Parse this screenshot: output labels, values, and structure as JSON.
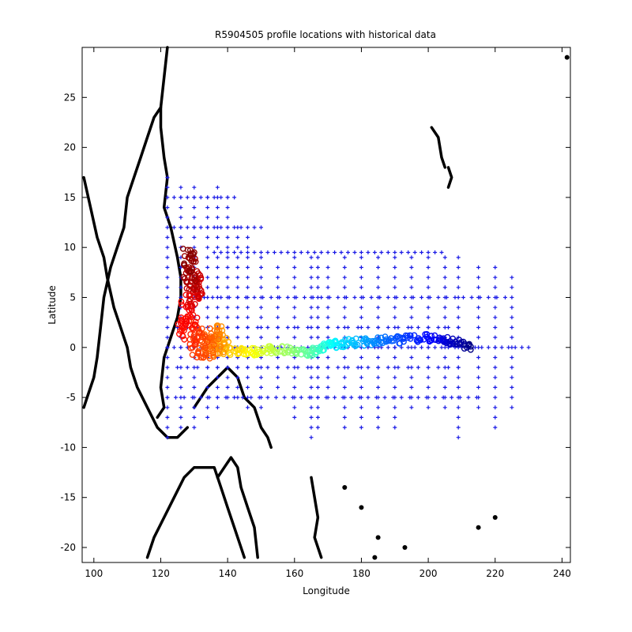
{
  "chart_data": {
    "type": "scatter",
    "title": "R5904505 profile locations with historical data",
    "xlabel": "Longitude",
    "ylabel": "Latitude",
    "xlim": [
      96.5,
      242.5
    ],
    "ylim": [
      -21.5,
      30
    ],
    "xticks": [
      100,
      120,
      140,
      160,
      180,
      200,
      220,
      240
    ],
    "yticks": [
      -20,
      -15,
      -10,
      -5,
      0,
      5,
      10,
      15,
      20,
      25
    ],
    "grid": false,
    "colors": {
      "historical": "#1a1ae6",
      "coastline": "#000000",
      "axes": "#000000"
    },
    "series": [
      {
        "role": "historical profiles",
        "marker": "plus",
        "color": "#1a1ae6",
        "tracks": [
          {
            "x": 122,
            "y0": -9,
            "y1": 17,
            "step": 1
          },
          {
            "x": 126,
            "y0": -8,
            "y1": 16,
            "step": 1
          },
          {
            "x": 130,
            "y0": -8,
            "y1": 16,
            "step": 1
          },
          {
            "x": 134,
            "y0": -7,
            "y1": 15,
            "step": 1
          },
          {
            "x": 137,
            "y0": -6,
            "y1": 16,
            "step": 1
          },
          {
            "x": 140,
            "y0": -5,
            "y1": 15,
            "step": 1
          },
          {
            "x": 143,
            "y0": -5,
            "y1": 12,
            "step": 1
          },
          {
            "x": 146,
            "y0": -6,
            "y1": 11,
            "step": 1
          },
          {
            "x": 150,
            "y0": -6,
            "y1": 9,
            "step": 1
          },
          {
            "x": 155,
            "y0": -4,
            "y1": 8,
            "step": 1
          },
          {
            "x": 160,
            "y0": -7,
            "y1": 9,
            "step": 1
          },
          {
            "x": 165,
            "y0": -9,
            "y1": 9,
            "step": 1
          },
          {
            "x": 167,
            "y0": -8,
            "y1": 9,
            "step": 1
          },
          {
            "x": 170,
            "y0": -5,
            "y1": 8,
            "step": 1
          },
          {
            "x": 175,
            "y0": -8,
            "y1": 9,
            "step": 1
          },
          {
            "x": 180,
            "y0": -8,
            "y1": 9,
            "step": 1
          },
          {
            "x": 185,
            "y0": -8,
            "y1": 9,
            "step": 1
          },
          {
            "x": 190,
            "y0": -8,
            "y1": 9,
            "step": 1
          },
          {
            "x": 195,
            "y0": -6,
            "y1": 9,
            "step": 1
          },
          {
            "x": 200,
            "y0": -6,
            "y1": 9,
            "step": 1
          },
          {
            "x": 205,
            "y0": -6,
            "y1": 9,
            "step": 1
          },
          {
            "x": 209,
            "y0": -9,
            "y1": 9,
            "step": 1
          },
          {
            "x": 215,
            "y0": -6,
            "y1": 8,
            "step": 1
          },
          {
            "x": 220,
            "y0": -8,
            "y1": 8,
            "step": 1
          },
          {
            "x": 225,
            "y0": -6,
            "y1": 7,
            "step": 1
          },
          {
            "y": 0,
            "x0": 122,
            "x1": 230,
            "step": 2
          },
          {
            "y": 9.5,
            "x0": 136,
            "x1": 205,
            "step": 2
          },
          {
            "y": 5,
            "x0": 128,
            "x1": 225,
            "step": 2.5
          },
          {
            "y": -5,
            "x0": 122,
            "x1": 215,
            "step": 2.5
          },
          {
            "y": 2,
            "x0": 125,
            "x1": 210,
            "step": 3
          },
          {
            "y": -2,
            "x0": 125,
            "x1": 210,
            "step": 3
          },
          {
            "y": 15,
            "x0": 124,
            "x1": 142,
            "step": 2
          },
          {
            "y": 12,
            "x0": 124,
            "x1": 150,
            "step": 2
          }
        ]
      },
      {
        "role": "float profiles (colour = profile order)",
        "marker": "circle",
        "colormap": "jet",
        "track": [
          {
            "x": 213,
            "y": 0.0
          },
          {
            "x": 208,
            "y": 0.5
          },
          {
            "x": 204,
            "y": 0.8
          },
          {
            "x": 199,
            "y": 1.0
          },
          {
            "x": 193,
            "y": 0.8
          },
          {
            "x": 187,
            "y": 0.7
          },
          {
            "x": 182,
            "y": 0.6
          },
          {
            "x": 177,
            "y": 0.5
          },
          {
            "x": 172,
            "y": 0.3
          },
          {
            "x": 168,
            "y": 0.0
          },
          {
            "x": 165,
            "y": -0.5
          },
          {
            "x": 160,
            "y": -0.3
          },
          {
            "x": 155,
            "y": -0.2
          },
          {
            "x": 150,
            "y": -0.3
          },
          {
            "x": 145,
            "y": -0.5
          },
          {
            "x": 140,
            "y": -0.3
          },
          {
            "x": 137,
            "y": 1.0
          },
          {
            "x": 135,
            "y": 0.3
          },
          {
            "x": 131,
            "y": 0.5
          },
          {
            "x": 127,
            "y": 2.5
          },
          {
            "x": 131,
            "y": 5.5
          },
          {
            "x": 129,
            "y": 7.5
          },
          {
            "x": 128,
            "y": 9.0
          }
        ]
      }
    ]
  }
}
